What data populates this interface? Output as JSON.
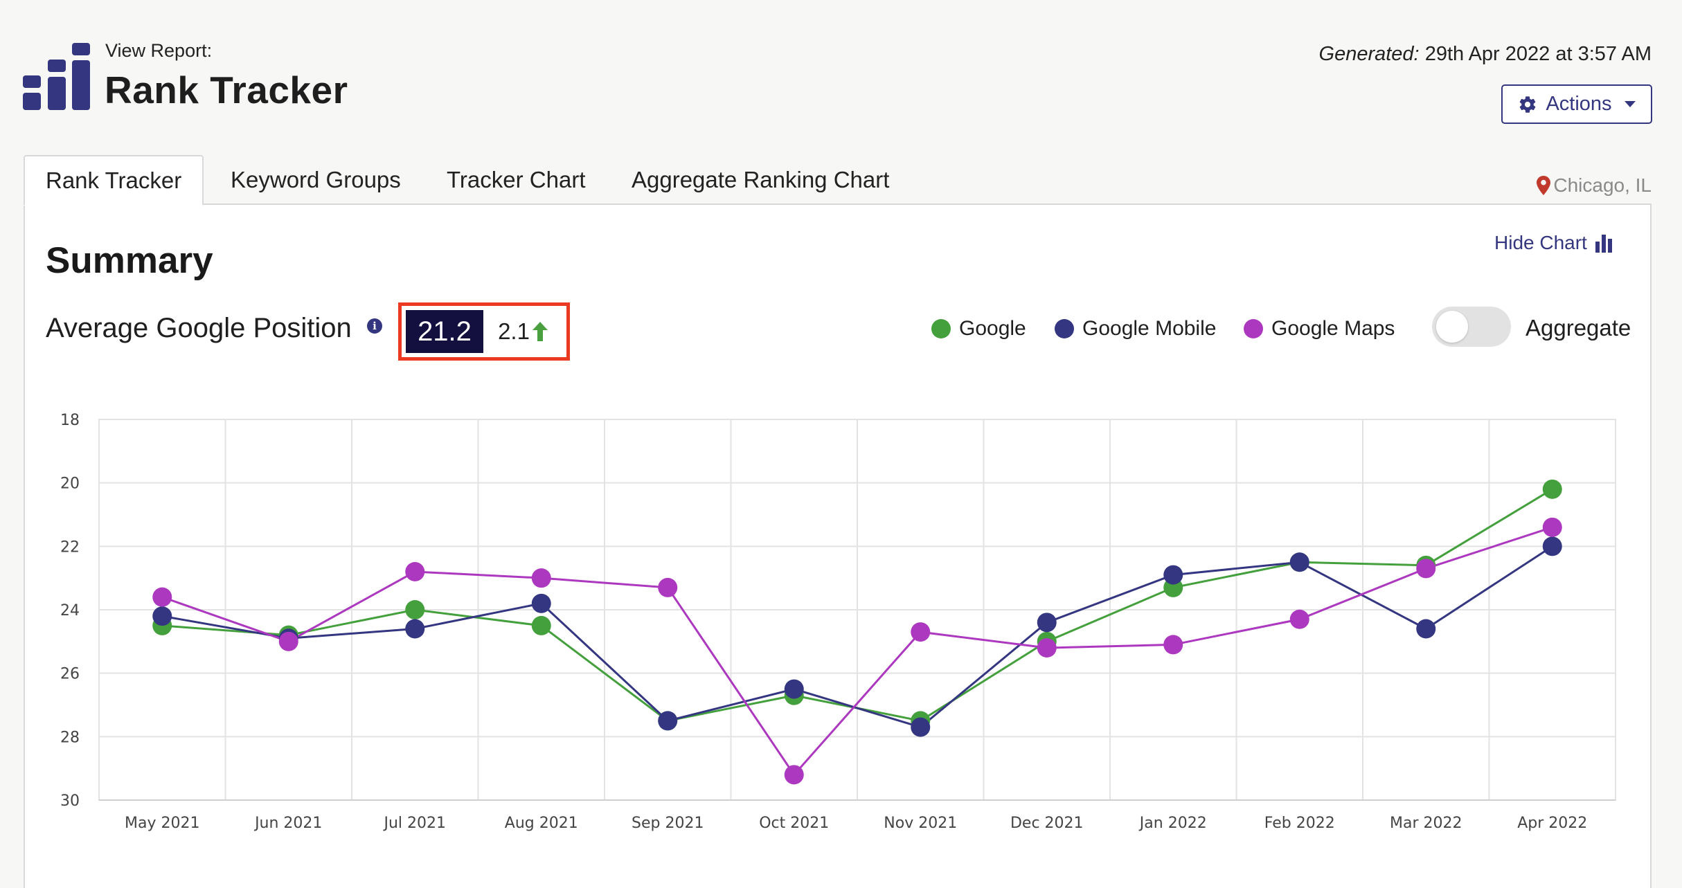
{
  "header": {
    "view_label": "View Report:",
    "title": "Rank Tracker",
    "generated_label": "Generated:",
    "generated_value": "29th Apr 2022 at 3:57 AM",
    "actions_label": "Actions"
  },
  "tabs": [
    {
      "label": "Rank  Tracker",
      "active": true
    },
    {
      "label": "Keyword Groups",
      "active": false
    },
    {
      "label": "Tracker Chart",
      "active": false
    },
    {
      "label": "Aggregate Ranking Chart",
      "active": false
    }
  ],
  "location": "Chicago, IL",
  "summary": {
    "title": "Summary",
    "hide_chart_label": "Hide Chart",
    "avg_label": "Average Google Position",
    "avg_value": "21.2",
    "change_value": "2.1",
    "change_direction": "up",
    "aggregate_label": "Aggregate",
    "aggregate_enabled": false
  },
  "colors": {
    "brand": "#34367f",
    "highlight_border": "#ea3a22",
    "score_bg": "#13103f",
    "up_arrow": "#4aa03f"
  },
  "chart_data": {
    "type": "line",
    "categories": [
      "May 2021",
      "Jun 2021",
      "Jul 2021",
      "Aug 2021",
      "Sep 2021",
      "Oct 2021",
      "Nov 2021",
      "Dec 2021",
      "Jan 2022",
      "Feb 2022",
      "Mar 2022",
      "Apr 2022"
    ],
    "ylim": [
      30,
      18
    ],
    "yticks": [
      18,
      20,
      22,
      24,
      26,
      28,
      30
    ],
    "y_inverted": true,
    "grid": true,
    "legend_position": "top-right",
    "series": [
      {
        "name": "Google",
        "color": "#44a03c",
        "values": [
          24.5,
          24.8,
          24.0,
          24.5,
          27.5,
          26.7,
          27.5,
          25.0,
          23.3,
          22.5,
          22.6,
          20.2
        ]
      },
      {
        "name": "Google Mobile",
        "color": "#343681",
        "values": [
          24.2,
          24.9,
          24.6,
          23.8,
          27.5,
          26.5,
          27.7,
          24.4,
          22.9,
          22.5,
          24.6,
          22.0
        ]
      },
      {
        "name": "Google Maps",
        "color": "#ad38c0",
        "values": [
          23.6,
          25.0,
          22.8,
          23.0,
          23.3,
          29.2,
          24.7,
          25.2,
          25.1,
          24.3,
          22.7,
          21.4
        ]
      }
    ]
  }
}
